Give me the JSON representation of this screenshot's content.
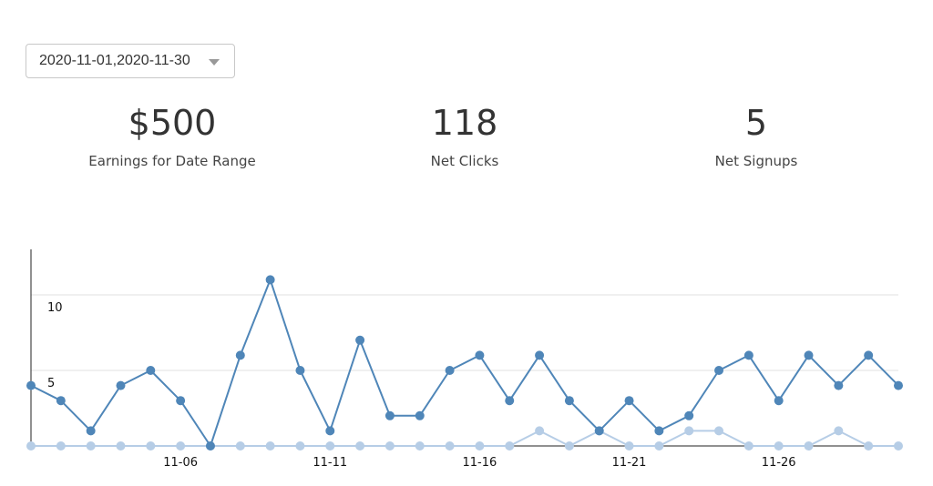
{
  "filter": {
    "date_range": "2020-11-01,2020-11-30"
  },
  "stats": {
    "earnings": {
      "value": "$500",
      "label": "Earnings for Date Range"
    },
    "clicks": {
      "value": "118",
      "label": "Net Clicks"
    },
    "signups": {
      "value": "5",
      "label": "Net Signups"
    }
  },
  "chart_data": {
    "type": "line",
    "title": "",
    "xlabel": "",
    "ylabel": "",
    "x": [
      "11-01",
      "11-02",
      "11-03",
      "11-04",
      "11-05",
      "11-06",
      "11-07",
      "11-08",
      "11-09",
      "11-10",
      "11-11",
      "11-12",
      "11-13",
      "11-14",
      "11-15",
      "11-16",
      "11-17",
      "11-18",
      "11-19",
      "11-20",
      "11-21",
      "11-22",
      "11-23",
      "11-24",
      "11-25",
      "11-26",
      "11-27",
      "11-28",
      "11-29",
      "11-30"
    ],
    "x_tick_labels": [
      "11-06",
      "11-11",
      "11-16",
      "11-21",
      "11-26"
    ],
    "y_tick_labels": [
      "5",
      "10"
    ],
    "ylim": [
      0,
      12
    ],
    "grid": true,
    "series": [
      {
        "color": "#4f86b8",
        "values": [
          4,
          3,
          1,
          4,
          5,
          3,
          0,
          6,
          11,
          5,
          1,
          7,
          2,
          2,
          5,
          6,
          3,
          6,
          3,
          1,
          3,
          1,
          2,
          5,
          6,
          3,
          6,
          4,
          6,
          4
        ]
      },
      {
        "color": "#b6cde6",
        "values": [
          0,
          0,
          0,
          0,
          0,
          0,
          0,
          0,
          0,
          0,
          0,
          0,
          0,
          0,
          0,
          0,
          0,
          1,
          0,
          1,
          0,
          0,
          1,
          1,
          0,
          0,
          0,
          1,
          0,
          0
        ]
      }
    ]
  }
}
